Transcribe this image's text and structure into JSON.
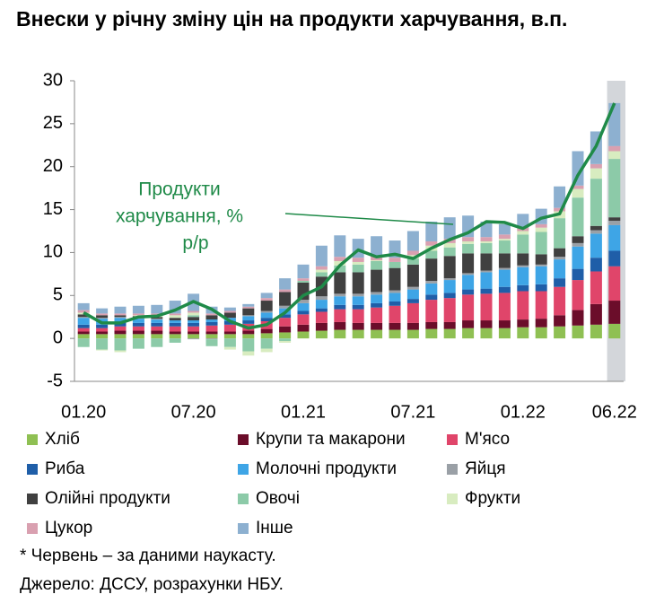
{
  "chart_data": {
    "type": "bar",
    "stacked": true,
    "title": "Внески у річну зміну цін на продукти харчування, в.п.",
    "categories": [
      "01.20",
      null,
      null,
      null,
      null,
      null,
      "07.20",
      null,
      null,
      null,
      null,
      null,
      "01.21",
      null,
      null,
      null,
      null,
      null,
      "07.21",
      null,
      null,
      null,
      null,
      null,
      "01.22",
      null,
      null,
      null,
      null,
      "06.22"
    ],
    "ylim": [
      -5,
      30
    ],
    "yticks": [
      -5,
      0,
      5,
      10,
      15,
      20,
      25,
      30
    ],
    "series": [
      {
        "name": "Хліб",
        "color": "#8fc053",
        "values": [
          0.5,
          0.5,
          0.5,
          0.5,
          0.5,
          0.5,
          0.5,
          0.5,
          0.5,
          0.5,
          0.6,
          0.7,
          0.8,
          0.9,
          1.0,
          1.0,
          1.0,
          1.0,
          1.0,
          1.1,
          1.1,
          1.2,
          1.2,
          1.2,
          1.3,
          1.3,
          1.4,
          1.5,
          1.6,
          1.7
        ]
      },
      {
        "name": "Крупи та макарони",
        "color": "#6b0d2a",
        "values": [
          0.3,
          0.3,
          0.4,
          0.4,
          0.4,
          0.3,
          0.3,
          0.3,
          0.3,
          0.4,
          0.5,
          0.7,
          0.8,
          0.9,
          0.9,
          0.8,
          0.8,
          0.8,
          0.8,
          0.8,
          0.8,
          0.9,
          0.9,
          0.9,
          0.9,
          1.0,
          1.3,
          1.8,
          2.4,
          2.7
        ]
      },
      {
        "name": "М'ясо",
        "color": "#e0456a",
        "values": [
          0.4,
          0.4,
          0.5,
          0.5,
          0.5,
          0.6,
          0.6,
          0.7,
          0.8,
          0.8,
          0.9,
          1.0,
          1.2,
          1.3,
          1.5,
          1.6,
          1.8,
          2.0,
          2.3,
          2.6,
          2.8,
          3.0,
          3.1,
          3.2,
          3.3,
          3.2,
          3.3,
          3.5,
          3.8,
          4.0
        ]
      },
      {
        "name": "Риба",
        "color": "#1f5ea8",
        "values": [
          0.4,
          0.4,
          0.4,
          0.4,
          0.4,
          0.4,
          0.4,
          0.4,
          0.4,
          0.4,
          0.4,
          0.4,
          0.4,
          0.4,
          0.5,
          0.5,
          0.5,
          0.5,
          0.5,
          0.6,
          0.6,
          0.6,
          0.6,
          0.7,
          0.7,
          0.8,
          1.0,
          1.3,
          1.6,
          1.8
        ]
      },
      {
        "name": "Молочні продукти",
        "color": "#3ea5e6",
        "values": [
          0.8,
          0.7,
          0.6,
          0.5,
          0.4,
          0.3,
          0.3,
          0.3,
          0.4,
          0.5,
          0.6,
          0.7,
          0.9,
          1.0,
          1.0,
          1.0,
          1.0,
          1.0,
          1.1,
          1.3,
          1.5,
          1.7,
          1.9,
          2.0,
          2.1,
          2.1,
          2.2,
          2.6,
          2.8,
          3.0
        ]
      },
      {
        "name": "Яйця",
        "color": "#9aa0a6",
        "values": [
          0.1,
          0.1,
          0.1,
          0.1,
          0.1,
          0.0,
          -0.1,
          -0.1,
          0.0,
          0.1,
          0.2,
          0.3,
          0.4,
          0.4,
          0.3,
          0.3,
          0.3,
          0.3,
          0.3,
          0.3,
          0.2,
          0.2,
          0.2,
          0.2,
          0.2,
          0.2,
          0.3,
          0.4,
          0.4,
          0.5
        ]
      },
      {
        "name": "Олійні продукти",
        "color": "#404040",
        "values": [
          0.3,
          0.3,
          0.2,
          0.2,
          0.2,
          0.3,
          0.4,
          0.5,
          0.6,
          0.8,
          1.2,
          1.6,
          2.0,
          2.3,
          2.5,
          2.5,
          2.6,
          2.6,
          2.6,
          2.6,
          2.6,
          2.3,
          2.0,
          1.7,
          1.4,
          1.2,
          1.0,
          0.8,
          0.5,
          0.4
        ]
      },
      {
        "name": "Овочі",
        "color": "#8ccaa8",
        "values": [
          -1.0,
          -1.3,
          -1.4,
          -1.2,
          -1.0,
          -0.5,
          0.2,
          -0.8,
          -1.0,
          -1.5,
          -1.2,
          -0.3,
          0.2,
          0.5,
          0.8,
          0.9,
          1.0,
          0.7,
          0.7,
          0.9,
          1.0,
          1.1,
          1.2,
          1.5,
          2.2,
          2.6,
          3.5,
          4.5,
          5.5,
          6.8
        ]
      },
      {
        "name": "Фрукти",
        "color": "#d8ecc0",
        "values": [
          0.2,
          -0.1,
          -0.2,
          0.1,
          0.2,
          0.3,
          0.3,
          0.0,
          -0.3,
          -0.5,
          -0.4,
          -0.2,
          0.0,
          0.3,
          0.5,
          0.3,
          0.1,
          0.0,
          0.4,
          0.6,
          0.5,
          0.3,
          0.2,
          0.2,
          0.4,
          0.5,
          0.8,
          1.0,
          1.2,
          0.9
        ]
      },
      {
        "name": "Цукор",
        "color": "#d9a0b0",
        "values": [
          0.3,
          0.2,
          0.2,
          0.2,
          0.2,
          0.2,
          0.2,
          0.2,
          0.2,
          0.2,
          0.3,
          0.3,
          0.3,
          0.4,
          0.5,
          0.5,
          0.5,
          0.5,
          0.5,
          0.5,
          0.5,
          0.5,
          0.5,
          0.5,
          0.4,
          0.4,
          0.4,
          0.4,
          0.5,
          0.6
        ]
      },
      {
        "name": "Інше",
        "color": "#8db0d0",
        "values": [
          0.8,
          0.6,
          0.8,
          0.9,
          1.0,
          1.5,
          2.0,
          0.8,
          0.4,
          0.3,
          0.6,
          1.3,
          1.6,
          2.4,
          2.5,
          2.2,
          2.3,
          2.0,
          2.3,
          2.3,
          2.5,
          2.5,
          1.8,
          1.2,
          1.6,
          1.8,
          2.5,
          4.0,
          3.8,
          5.0
        ]
      }
    ],
    "line": {
      "color": "#1f8a48",
      "values": [
        3.0,
        1.8,
        1.8,
        2.5,
        2.6,
        3.3,
        4.3,
        3.4,
        2.0,
        1.2,
        1.6,
        3.0,
        5.0,
        6.0,
        8.5,
        10.3,
        9.5,
        9.8,
        9.3,
        10.5,
        11.5,
        12.3,
        13.6,
        13.5,
        12.8,
        14.0,
        14.5,
        19.0,
        22.4,
        27.4
      ]
    },
    "annotation": [
      "Продукти",
      "харчування, %",
      "р/р"
    ],
    "footnotes": [
      "* Червень – за даними наукасту.",
      "Джерело: ДССУ, розрахунки НБУ."
    ]
  }
}
